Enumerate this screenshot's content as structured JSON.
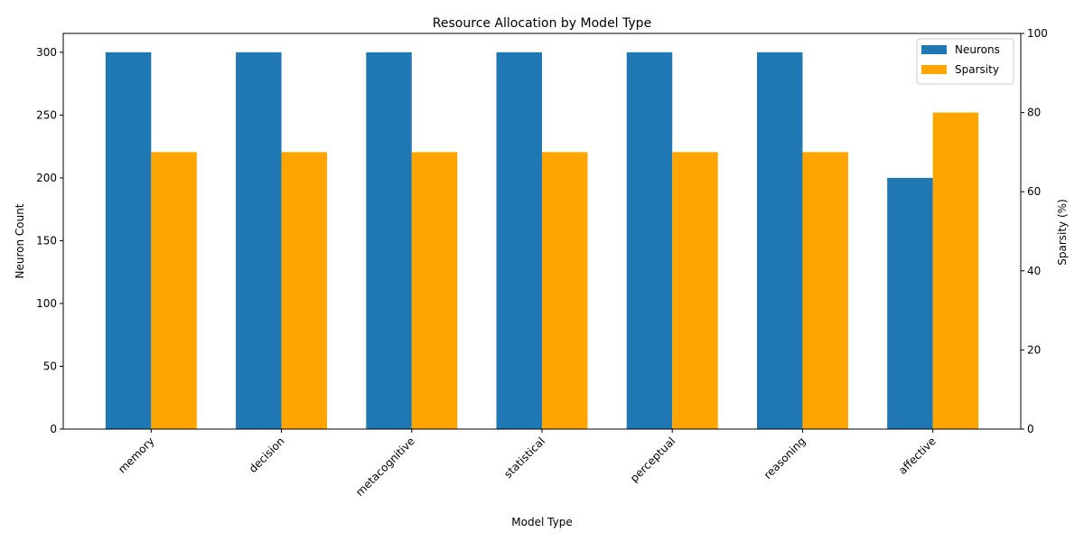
{
  "chart_data": {
    "type": "bar",
    "title": "Resource Allocation by Model Type",
    "xlabel": "Model Type",
    "ylabel": "Neuron Count",
    "y2label": "Sparsity (%)",
    "categories": [
      "memory",
      "decision",
      "metacognitive",
      "statistical",
      "perceptual",
      "reasoning",
      "affective"
    ],
    "series": [
      {
        "name": "Neurons",
        "axis": "left",
        "color": "#1f77b4",
        "values": [
          300,
          300,
          300,
          300,
          300,
          300,
          200
        ]
      },
      {
        "name": "Sparsity",
        "axis": "right",
        "color": "#ffa500",
        "values": [
          70,
          70,
          70,
          70,
          70,
          70,
          80
        ]
      }
    ],
    "ylim": [
      0,
      315
    ],
    "yticks": [
      0,
      50,
      100,
      150,
      200,
      250,
      300
    ],
    "y2lim": [
      0,
      100
    ],
    "y2ticks": [
      0,
      20,
      40,
      60,
      80,
      100
    ],
    "legend_position": "top-right",
    "grid": false
  }
}
